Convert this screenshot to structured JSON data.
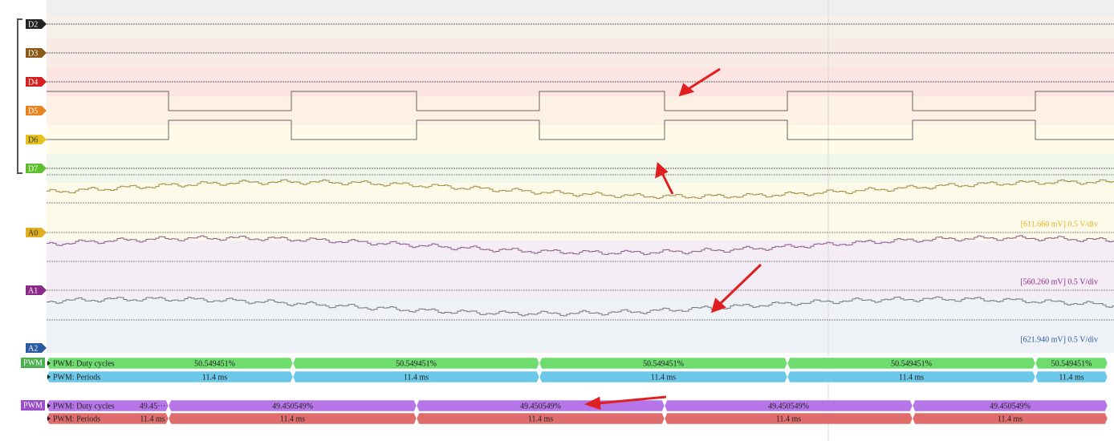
{
  "channels": [
    {
      "label": "D2"
    },
    {
      "label": "D3"
    },
    {
      "label": "D4"
    },
    {
      "label": "D5"
    },
    {
      "label": "D6"
    },
    {
      "label": "D7"
    },
    {
      "label": "A0"
    },
    {
      "label": "A1"
    },
    {
      "label": "A2"
    }
  ],
  "analog_scales": [
    "[611.660 mV] 0.5 V/div",
    "[560.260 mV] 0.5 V/div",
    "[621.940 mV] 0.5 V/div"
  ],
  "decoders": [
    {
      "badge": "PWM",
      "rows": [
        {
          "label": "PWM: Duty cycles",
          "segments": [
            "50.549451%",
            "50.549451%",
            "50.549451%",
            "50.549451%",
            "50.549451%"
          ]
        },
        {
          "label": "PWM: Periods",
          "segments": [
            "11.4 ms",
            "11.4 ms",
            "11.4 ms",
            "11.4 ms",
            "11.4 ms"
          ]
        }
      ]
    },
    {
      "badge": "PWM",
      "rows": [
        {
          "label": "PWM: Duty cycles",
          "segments": [
            "49.45···",
            "49.450549%",
            "49.450549%",
            "49.450549%",
            "49.450549%"
          ]
        },
        {
          "label": "PWM: Periods",
          "segments": [
            "11.4 ms",
            "11.4 ms",
            "11.4 ms",
            "11.4 ms",
            "11.4 ms"
          ]
        }
      ]
    }
  ]
}
